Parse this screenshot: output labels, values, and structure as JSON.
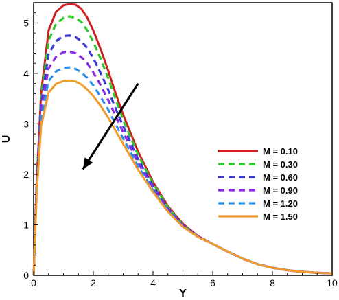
{
  "chart_data": {
    "type": "line",
    "xlabel": "Y",
    "ylabel": "U",
    "xlim": [
      0,
      10
    ],
    "ylim": [
      0,
      5.4
    ],
    "xticks": [
      "0",
      "2",
      "4",
      "6",
      "8",
      "10"
    ],
    "yticks": [
      "0",
      "1",
      "2",
      "3",
      "4",
      "5"
    ],
    "grid": false,
    "legend_position": "right",
    "x": [
      0,
      0.1,
      0.25,
      0.5,
      0.75,
      1.0,
      1.2,
      1.4,
      1.6,
      1.8,
      2.0,
      2.25,
      2.5,
      2.75,
      3.0,
      3.5,
      4.0,
      4.5,
      5.0,
      5.5,
      6.0,
      6.5,
      7.0,
      7.5,
      8.0,
      8.5,
      9.0,
      9.5,
      10.0
    ],
    "series": [
      {
        "name": "M = 0.10",
        "color": "#cc1f1f",
        "dash": "solid",
        "values": [
          0,
          1.85,
          3.6,
          4.85,
          5.22,
          5.35,
          5.37,
          5.36,
          5.28,
          5.1,
          4.85,
          4.47,
          4.05,
          3.6,
          3.18,
          2.45,
          1.85,
          1.37,
          1.02,
          0.78,
          0.62,
          0.47,
          0.33,
          0.22,
          0.15,
          0.1,
          0.07,
          0.05,
          0.04
        ]
      },
      {
        "name": "M = 0.30",
        "color": "#2ec92e",
        "dash": "dashed",
        "values": [
          0,
          1.8,
          3.5,
          4.65,
          4.98,
          5.1,
          5.13,
          5.1,
          5.02,
          4.85,
          4.62,
          4.28,
          3.9,
          3.48,
          3.08,
          2.38,
          1.82,
          1.35,
          1.0,
          0.77,
          0.62,
          0.47,
          0.33,
          0.22,
          0.15,
          0.1,
          0.07,
          0.05,
          0.04
        ]
      },
      {
        "name": "M = 0.60",
        "color": "#3a3ad6",
        "dash": "dashed",
        "values": [
          0,
          1.75,
          3.38,
          4.38,
          4.64,
          4.74,
          4.75,
          4.72,
          4.64,
          4.5,
          4.3,
          4.0,
          3.67,
          3.3,
          2.95,
          2.3,
          1.77,
          1.32,
          0.99,
          0.77,
          0.62,
          0.47,
          0.33,
          0.22,
          0.15,
          0.1,
          0.07,
          0.05,
          0.04
        ]
      },
      {
        "name": "M = 0.90",
        "color": "#8b2be2",
        "dash": "dashed",
        "values": [
          0,
          1.7,
          3.25,
          4.1,
          4.33,
          4.42,
          4.43,
          4.4,
          4.32,
          4.2,
          4.02,
          3.76,
          3.47,
          3.15,
          2.83,
          2.23,
          1.73,
          1.3,
          0.98,
          0.77,
          0.62,
          0.47,
          0.33,
          0.22,
          0.15,
          0.1,
          0.07,
          0.05,
          0.04
        ]
      },
      {
        "name": "M = 1.20",
        "color": "#2b8fe6",
        "dash": "dashed",
        "values": [
          0,
          1.66,
          3.1,
          3.85,
          4.04,
          4.11,
          4.12,
          4.09,
          4.02,
          3.91,
          3.76,
          3.53,
          3.28,
          2.99,
          2.71,
          2.16,
          1.69,
          1.28,
          0.97,
          0.76,
          0.62,
          0.47,
          0.33,
          0.22,
          0.15,
          0.1,
          0.07,
          0.05,
          0.04
        ]
      },
      {
        "name": "M = 1.50",
        "color": "#f39a2c",
        "dash": "solid",
        "values": [
          0,
          1.6,
          2.95,
          3.62,
          3.79,
          3.85,
          3.86,
          3.84,
          3.78,
          3.68,
          3.55,
          3.35,
          3.12,
          2.86,
          2.6,
          2.09,
          1.65,
          1.26,
          0.96,
          0.76,
          0.62,
          0.47,
          0.33,
          0.22,
          0.15,
          0.1,
          0.07,
          0.05,
          0.04
        ]
      }
    ],
    "annotations": [
      {
        "type": "arrow",
        "from": [
          3.5,
          3.8
        ],
        "to": [
          1.65,
          2.1
        ],
        "meaning": "increasing M"
      }
    ]
  }
}
